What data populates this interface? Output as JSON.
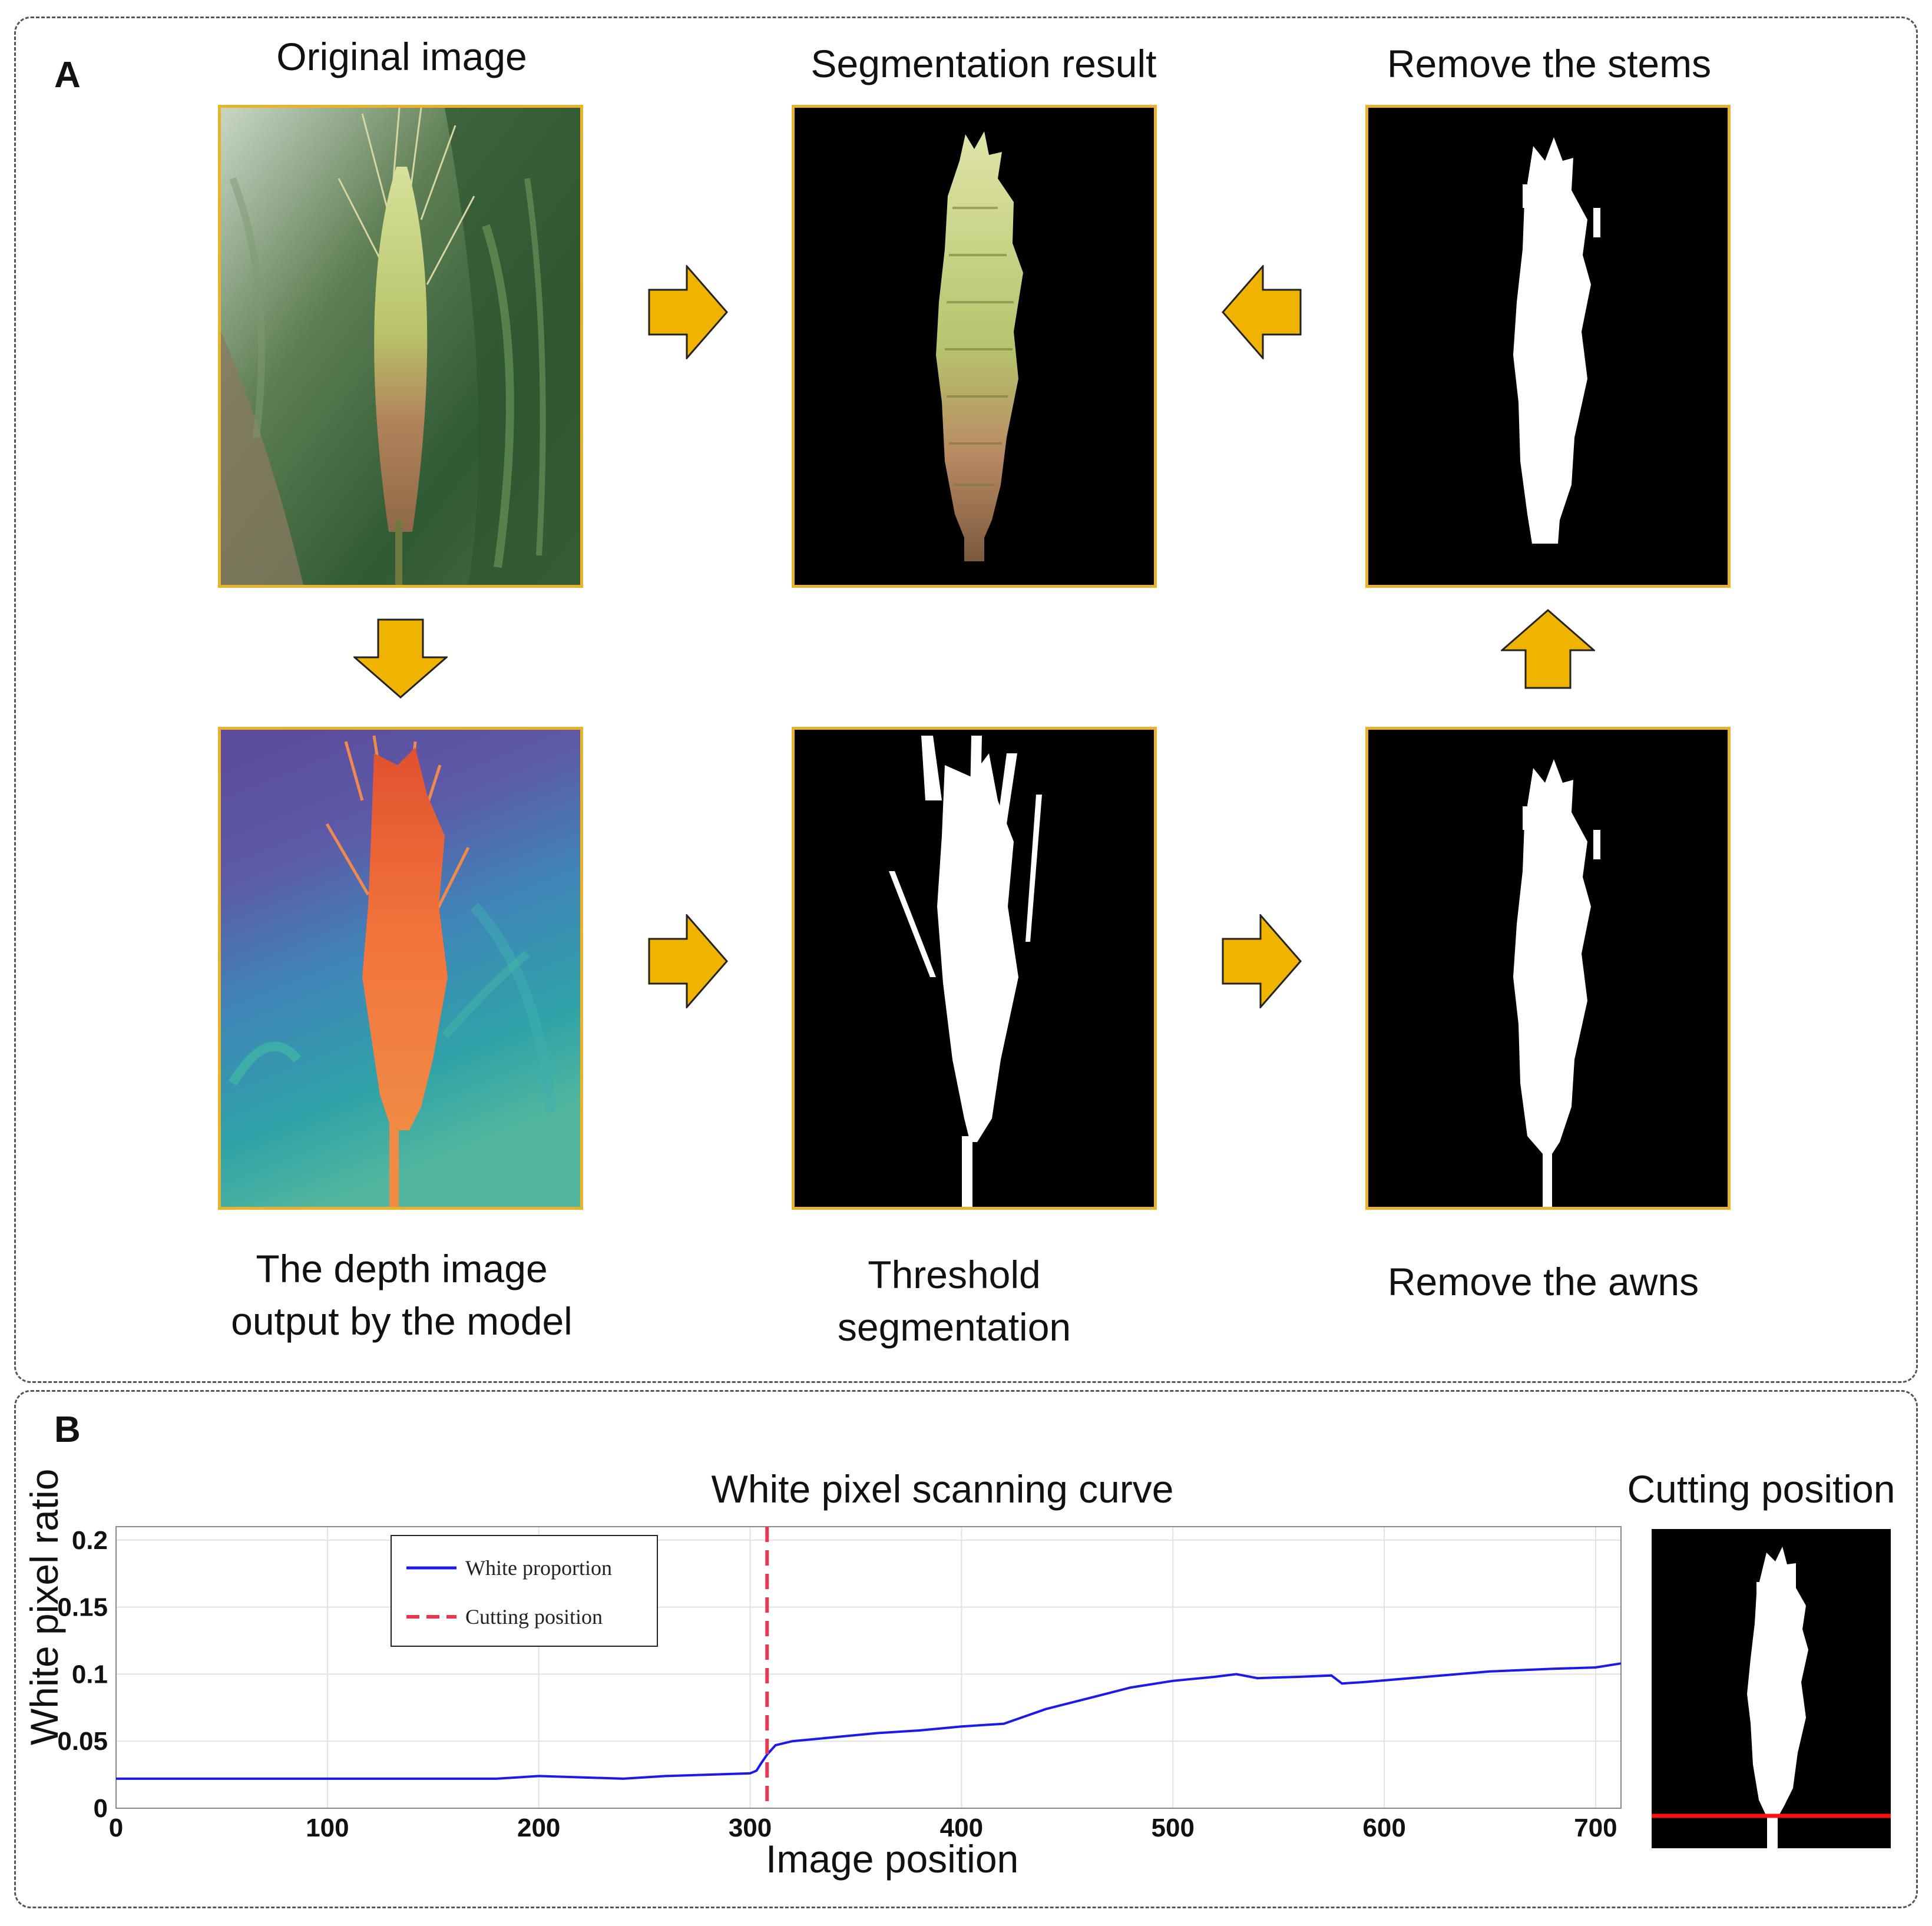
{
  "panel_a": {
    "letter": "A",
    "captions": {
      "original": "Original image",
      "segmentation": "Segmentation result",
      "remove_stems": "Remove the stems",
      "depth_line1": "The depth image",
      "depth_line2": "output by the model",
      "threshold_line1": "Threshold",
      "threshold_line2": "segmentation",
      "remove_awns": "Remove the awns"
    }
  },
  "panel_b": {
    "letter": "B",
    "cutting_title": "Cutting position"
  },
  "colors": {
    "arrow": "#f0b400",
    "frame": "#e8b32a",
    "curve": "#1a1aee",
    "cut_line": "#e8384f",
    "red_line": "#ff1010"
  },
  "chart_data": {
    "type": "line",
    "title": "White pixel scanning curve",
    "xlabel": "Image position",
    "ylabel": "White pixel ratio",
    "xlim": [
      0,
      712
    ],
    "ylim": [
      0,
      0.21
    ],
    "xticks": [
      0,
      100,
      200,
      300,
      400,
      500,
      600,
      700
    ],
    "yticks": [
      0,
      0.05,
      0.1,
      0.15,
      0.2
    ],
    "ytick_labels": [
      "0",
      "0.05",
      "0.1",
      "0.15",
      "0.2"
    ],
    "grid": true,
    "legend": {
      "position": "top-left",
      "entries": [
        "White proportion",
        "Cutting position"
      ]
    },
    "series": [
      {
        "name": "White proportion",
        "x": [
          0,
          50,
          100,
          150,
          180,
          200,
          220,
          240,
          260,
          280,
          300,
          303,
          305,
          308,
          312,
          320,
          340,
          360,
          380,
          400,
          420,
          440,
          460,
          480,
          500,
          520,
          530,
          540,
          560,
          575,
          580,
          590,
          620,
          650,
          680,
          700,
          712
        ],
        "y": [
          0.022,
          0.022,
          0.022,
          0.022,
          0.022,
          0.024,
          0.023,
          0.022,
          0.024,
          0.025,
          0.026,
          0.028,
          0.033,
          0.04,
          0.047,
          0.05,
          0.053,
          0.056,
          0.058,
          0.061,
          0.063,
          0.074,
          0.082,
          0.09,
          0.095,
          0.098,
          0.1,
          0.097,
          0.098,
          0.099,
          0.093,
          0.094,
          0.098,
          0.102,
          0.104,
          0.105,
          0.108
        ]
      }
    ],
    "cutting_position": 308
  }
}
